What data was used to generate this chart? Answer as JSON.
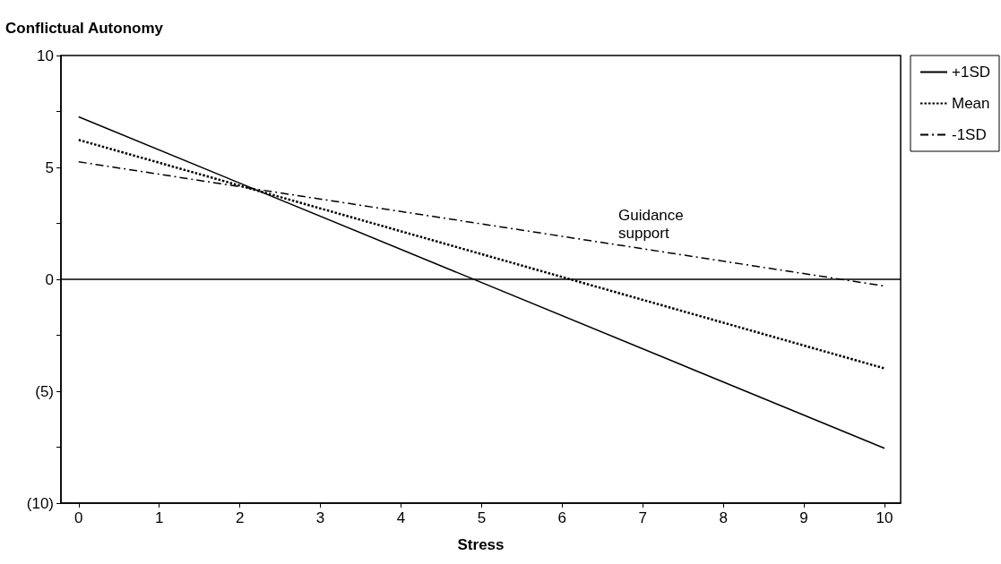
{
  "chart_data": {
    "type": "line",
    "ylabel": "Conflictual Autonomy",
    "xlabel": "Stress",
    "x": [
      0,
      10
    ],
    "series": [
      {
        "name": "+1SD",
        "color": "#000000",
        "values": [
          7.26,
          -7.55
        ],
        "line_style": "solid"
      },
      {
        "name": "Mean",
        "color": "#000000",
        "values": [
          6.23,
          -3.98
        ],
        "line_style": "dotted"
      },
      {
        "name": "-1SD",
        "color": "#000000",
        "values": [
          5.25,
          -0.3
        ],
        "line_style": "dashdot"
      }
    ],
    "xlim": [
      -0.22,
      10.2
    ],
    "xticks": [
      0,
      1,
      2,
      3,
      4,
      5,
      6,
      7,
      8,
      9,
      10
    ],
    "ylim": [
      -10,
      10
    ],
    "yticks": [
      {
        "value": -10,
        "label": "(10)"
      },
      {
        "value": -7.5,
        "label": null
      },
      {
        "value": -5,
        "label": "(5)"
      },
      {
        "value": -2.5,
        "label": null
      },
      0,
      {
        "value": 2.5,
        "label": null
      },
      5,
      {
        "value": 7.5,
        "label": null
      },
      10
    ],
    "ref_lines": [
      {
        "axis": "y",
        "value": 0,
        "color": "#000000",
        "line_style": "solid"
      }
    ],
    "annotations": [
      "Guidance support"
    ],
    "grid": false,
    "legend": "right",
    "marker": "none"
  }
}
